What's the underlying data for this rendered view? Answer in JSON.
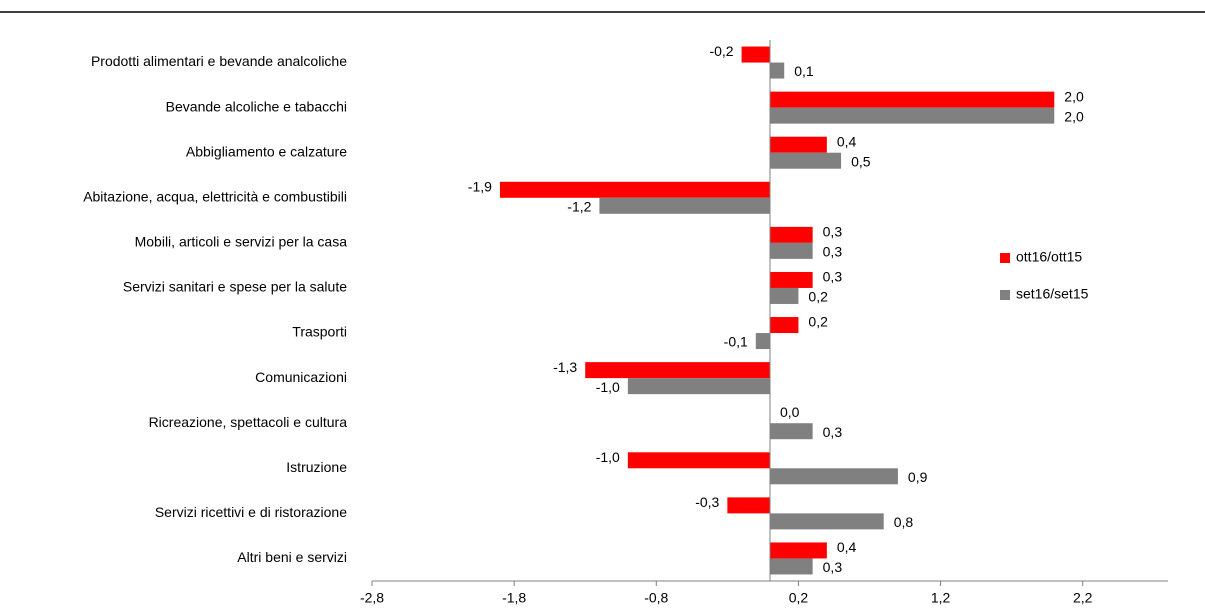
{
  "chart_data": {
    "type": "barh",
    "categories": [
      "Prodotti alimentari e bevande analcoliche",
      "Bevande alcoliche e tabacchi",
      "Abbigliamento e calzature",
      "Abitazione, acqua, elettricità e combustibili",
      "Mobili, articoli e servizi per la casa",
      "Servizi sanitari e spese per la salute",
      "Trasporti",
      "Comunicazioni",
      "Ricreazione, spettacoli e cultura",
      "Istruzione",
      "Servizi ricettivi e di ristorazione",
      "Altri beni e servizi"
    ],
    "series": [
      {
        "name": "ott16/ott15",
        "color": "#ff0000",
        "values": [
          -0.2,
          2.0,
          0.4,
          -1.9,
          0.3,
          0.3,
          0.2,
          -1.3,
          0.0,
          -1.0,
          -0.3,
          0.4
        ],
        "value_labels": [
          "-0,2",
          "2,0",
          "0,4",
          "-1,9",
          "0,3",
          "0,3",
          "0,2",
          "-1,3",
          "0,0",
          "-1,0",
          "-0,3",
          "0,4"
        ]
      },
      {
        "name": "set16/set15",
        "color": "#808080",
        "values": [
          0.1,
          2.0,
          0.5,
          -1.2,
          0.3,
          0.2,
          -0.1,
          -1.0,
          0.3,
          0.9,
          0.8,
          0.3
        ],
        "value_labels": [
          "0,1",
          "2,0",
          "0,5",
          "-1,2",
          "0,3",
          "0,2",
          "-0,1",
          "-1,0",
          "0,3",
          "0,9",
          "0,8",
          "0,3"
        ]
      }
    ],
    "xlim": [
      -2.8,
      2.8
    ],
    "xticks": [
      {
        "value": -2.8,
        "label": "-2,8"
      },
      {
        "value": -1.8,
        "label": "-1,8"
      },
      {
        "value": -0.8,
        "label": "-0,8"
      },
      {
        "value": 0.2,
        "label": "0,2"
      },
      {
        "value": 1.2,
        "label": "1,2"
      },
      {
        "value": 2.2,
        "label": "2,2"
      }
    ],
    "legend": "right"
  }
}
